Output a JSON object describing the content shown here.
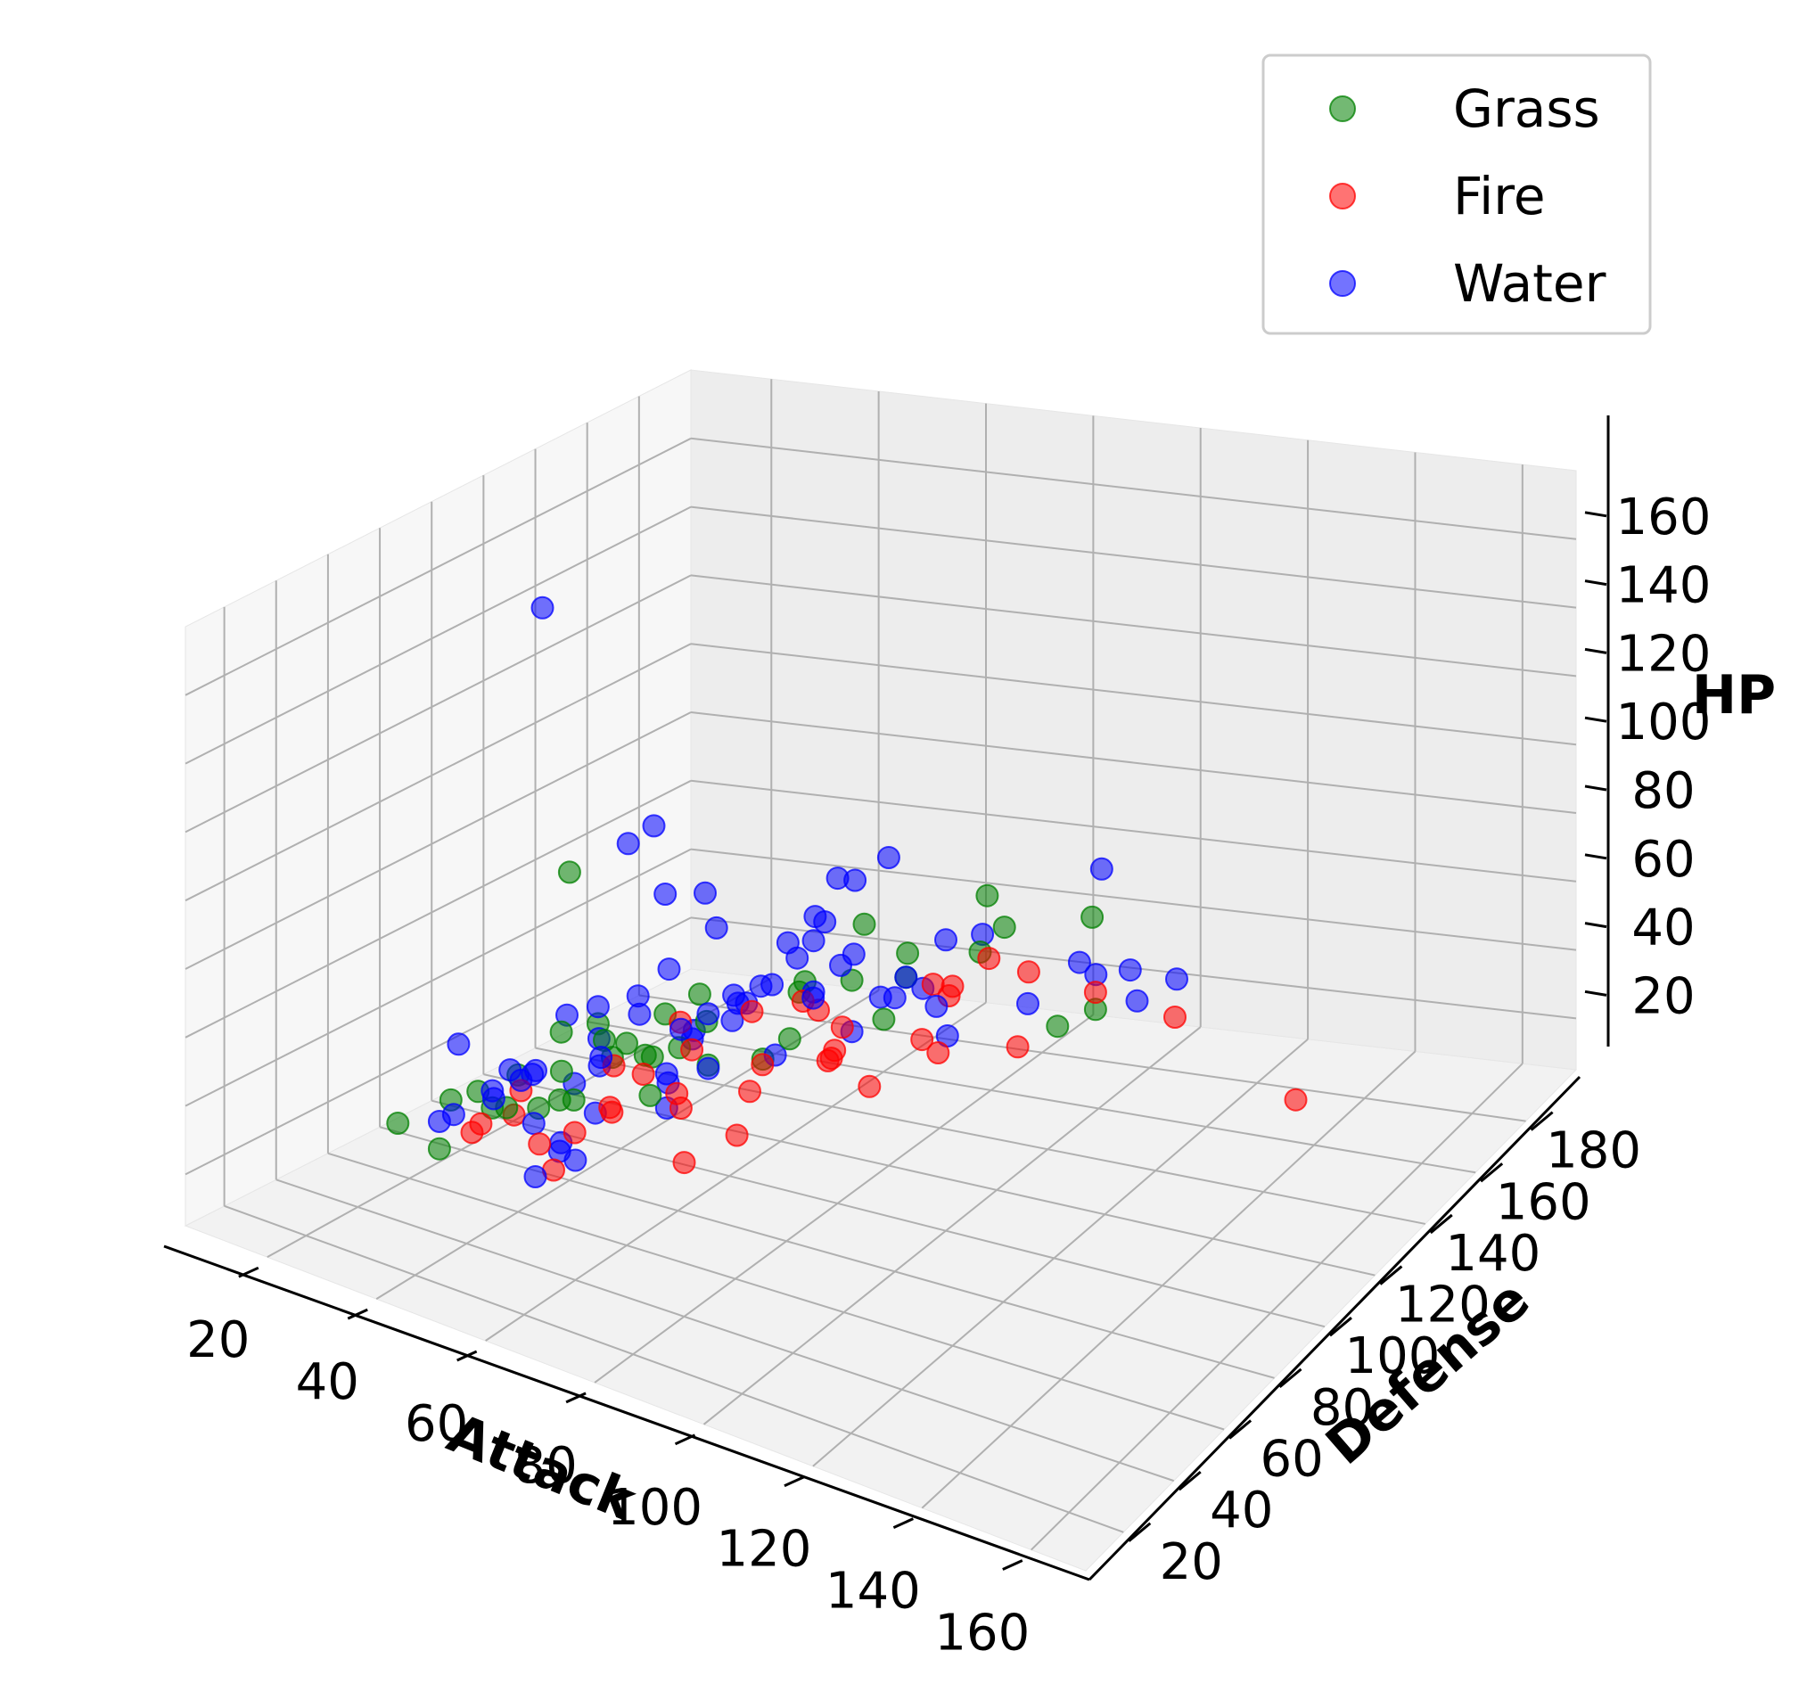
{
  "chart_data": {
    "type": "scatter",
    "projection": "3d",
    "xlabel": "Attack",
    "ylabel": "Defense",
    "zlabel": "HP",
    "xlim": [
      5,
      170
    ],
    "ylim": [
      5,
      200
    ],
    "zlim": [
      5,
      180
    ],
    "xticks": [
      20,
      40,
      60,
      80,
      100,
      120,
      140,
      160
    ],
    "yticks": [
      20,
      40,
      60,
      80,
      100,
      120,
      140,
      160,
      180
    ],
    "zticks": [
      20,
      40,
      60,
      80,
      100,
      120,
      140,
      160
    ],
    "grid": true,
    "legend_position": "top-right",
    "series": [
      {
        "name": "Grass",
        "color": "#008000",
        "points": [
          [
            49,
            49,
            45
          ],
          [
            62,
            63,
            60
          ],
          [
            82,
            83,
            80
          ],
          [
            100,
            123,
            80
          ],
          [
            50,
            55,
            45
          ],
          [
            65,
            70,
            60
          ],
          [
            80,
            85,
            75
          ],
          [
            105,
            65,
            90
          ],
          [
            55,
            50,
            50
          ],
          [
            75,
            60,
            65
          ],
          [
            30,
            55,
            35
          ],
          [
            40,
            60,
            45
          ],
          [
            55,
            65,
            55
          ],
          [
            70,
            48,
            60
          ],
          [
            95,
            95,
            80
          ],
          [
            50,
            70,
            60
          ],
          [
            85,
            95,
            75
          ],
          [
            120,
            115,
            95
          ],
          [
            48,
            60,
            50
          ],
          [
            60,
            75,
            65
          ],
          [
            92,
            85,
            100
          ],
          [
            40,
            50,
            40
          ],
          [
            45,
            45,
            45
          ],
          [
            70,
            70,
            70
          ],
          [
            90,
            60,
            80
          ],
          [
            100,
            85,
            95
          ],
          [
            130,
            80,
            90
          ],
          [
            25,
            45,
            30
          ],
          [
            35,
            55,
            40
          ],
          [
            60,
            70,
            55
          ],
          [
            78,
            75,
            60
          ],
          [
            110,
            95,
            110
          ],
          [
            130,
            95,
            85
          ],
          [
            54,
            64,
            60
          ],
          [
            64,
            80,
            70
          ],
          [
            104,
            105,
            85
          ],
          [
            40,
            80,
            95
          ],
          [
            60,
            60,
            64
          ],
          [
            47,
            62,
            60
          ],
          [
            35,
            40,
            30
          ]
        ]
      },
      {
        "name": "Fire",
        "color": "#ff0000",
        "points": [
          [
            52,
            43,
            39
          ],
          [
            64,
            58,
            58
          ],
          [
            84,
            78,
            78
          ],
          [
            41,
            40,
            38
          ],
          [
            76,
            75,
            73
          ],
          [
            110,
            80,
            90
          ],
          [
            85,
            50,
            55
          ],
          [
            100,
            70,
            65
          ],
          [
            130,
            95,
            90
          ],
          [
            50,
            40,
            55
          ],
          [
            60,
            55,
            60
          ],
          [
            95,
            70,
            80
          ],
          [
            115,
            85,
            100
          ],
          [
            160,
            110,
            60
          ],
          [
            45,
            35,
            45
          ],
          [
            105,
            80,
            75
          ],
          [
            93,
            70,
            70
          ],
          [
            84,
            84,
            72
          ],
          [
            115,
            65,
            85
          ],
          [
            58,
            44,
            45
          ],
          [
            73,
            52,
            60
          ],
          [
            64,
            45,
            55
          ],
          [
            85,
            60,
            70
          ],
          [
            125,
            75,
            85
          ],
          [
            80,
            40,
            50
          ],
          [
            56,
            40,
            35
          ],
          [
            70,
            60,
            50
          ],
          [
            85,
            55,
            65
          ],
          [
            140,
            105,
            80
          ],
          [
            68,
            64,
            72
          ],
          [
            95,
            67,
            75
          ],
          [
            100,
            95,
            80
          ],
          [
            120,
            90,
            95
          ],
          [
            72,
            60,
            68
          ],
          [
            44,
            50,
            40
          ],
          [
            120,
            60,
            110
          ],
          [
            90,
            75,
            65
          ],
          [
            62,
            50,
            50
          ]
        ]
      },
      {
        "name": "Water",
        "color": "#0000ff",
        "points": [
          [
            48,
            65,
            44
          ],
          [
            63,
            80,
            59
          ],
          [
            83,
            100,
            79
          ],
          [
            45,
            40,
            50
          ],
          [
            60,
            65,
            70
          ],
          [
            80,
            95,
            90
          ],
          [
            85,
            80,
            95
          ],
          [
            50,
            55,
            30
          ],
          [
            65,
            65,
            45
          ],
          [
            95,
            95,
            80
          ],
          [
            92,
            65,
            90
          ],
          [
            65,
            80,
            100
          ],
          [
            90,
            180,
            30
          ],
          [
            55,
            45,
            40
          ],
          [
            75,
            60,
            80
          ],
          [
            48,
            40,
            60
          ],
          [
            65,
            75,
            60
          ],
          [
            120,
            110,
            85
          ],
          [
            40,
            35,
            45
          ],
          [
            60,
            50,
            65
          ],
          [
            72,
            78,
            72
          ],
          [
            120,
            130,
            70
          ],
          [
            85,
            70,
            100
          ],
          [
            140,
            90,
            95
          ],
          [
            30,
            100,
            40
          ],
          [
            44,
            160,
            34
          ],
          [
            65,
            60,
            130
          ],
          [
            85,
            80,
            80
          ],
          [
            95,
            85,
            80
          ],
          [
            55,
            35,
            35
          ],
          [
            65,
            65,
            55
          ],
          [
            90,
            70,
            110
          ],
          [
            85,
            95,
            60
          ],
          [
            100,
            80,
            85
          ],
          [
            60,
            75,
            100
          ],
          [
            35,
            80,
            170
          ],
          [
            45,
            55,
            50
          ],
          [
            75,
            75,
            75
          ],
          [
            35,
            40,
            38
          ],
          [
            92,
            108,
            68
          ],
          [
            125,
            79,
            95
          ],
          [
            65,
            50,
            130
          ],
          [
            80,
            100,
            100
          ],
          [
            48,
            50,
            55
          ],
          [
            105,
            90,
            70
          ],
          [
            50,
            70,
            65
          ],
          [
            75,
            85,
            75
          ],
          [
            40,
            50,
            45
          ],
          [
            70,
            55,
            60
          ],
          [
            95,
            125,
            75
          ],
          [
            60,
            95,
            80
          ],
          [
            110,
            75,
            90
          ],
          [
            80,
            120,
            95
          ],
          [
            55,
            60,
            55
          ],
          [
            75,
            70,
            80
          ],
          [
            145,
            95,
            100
          ],
          [
            50,
            45,
            43
          ],
          [
            70,
            60,
            73
          ],
          [
            90,
            80,
            90
          ],
          [
            25,
            150,
            30
          ],
          [
            53,
            64,
            60
          ],
          [
            85,
            65,
            70
          ],
          [
            30,
            58,
            50
          ],
          [
            100,
            100,
            90
          ],
          [
            60,
            40,
            40
          ],
          [
            75,
            60,
            64
          ],
          [
            55,
            75,
            68
          ],
          [
            110,
            140,
            90
          ],
          [
            80,
            70,
            85
          ],
          [
            40,
            90,
            20
          ],
          [
            95,
            75,
            120
          ],
          [
            50,
            40,
            58
          ],
          [
            70,
            80,
            65
          ]
        ]
      }
    ]
  }
}
